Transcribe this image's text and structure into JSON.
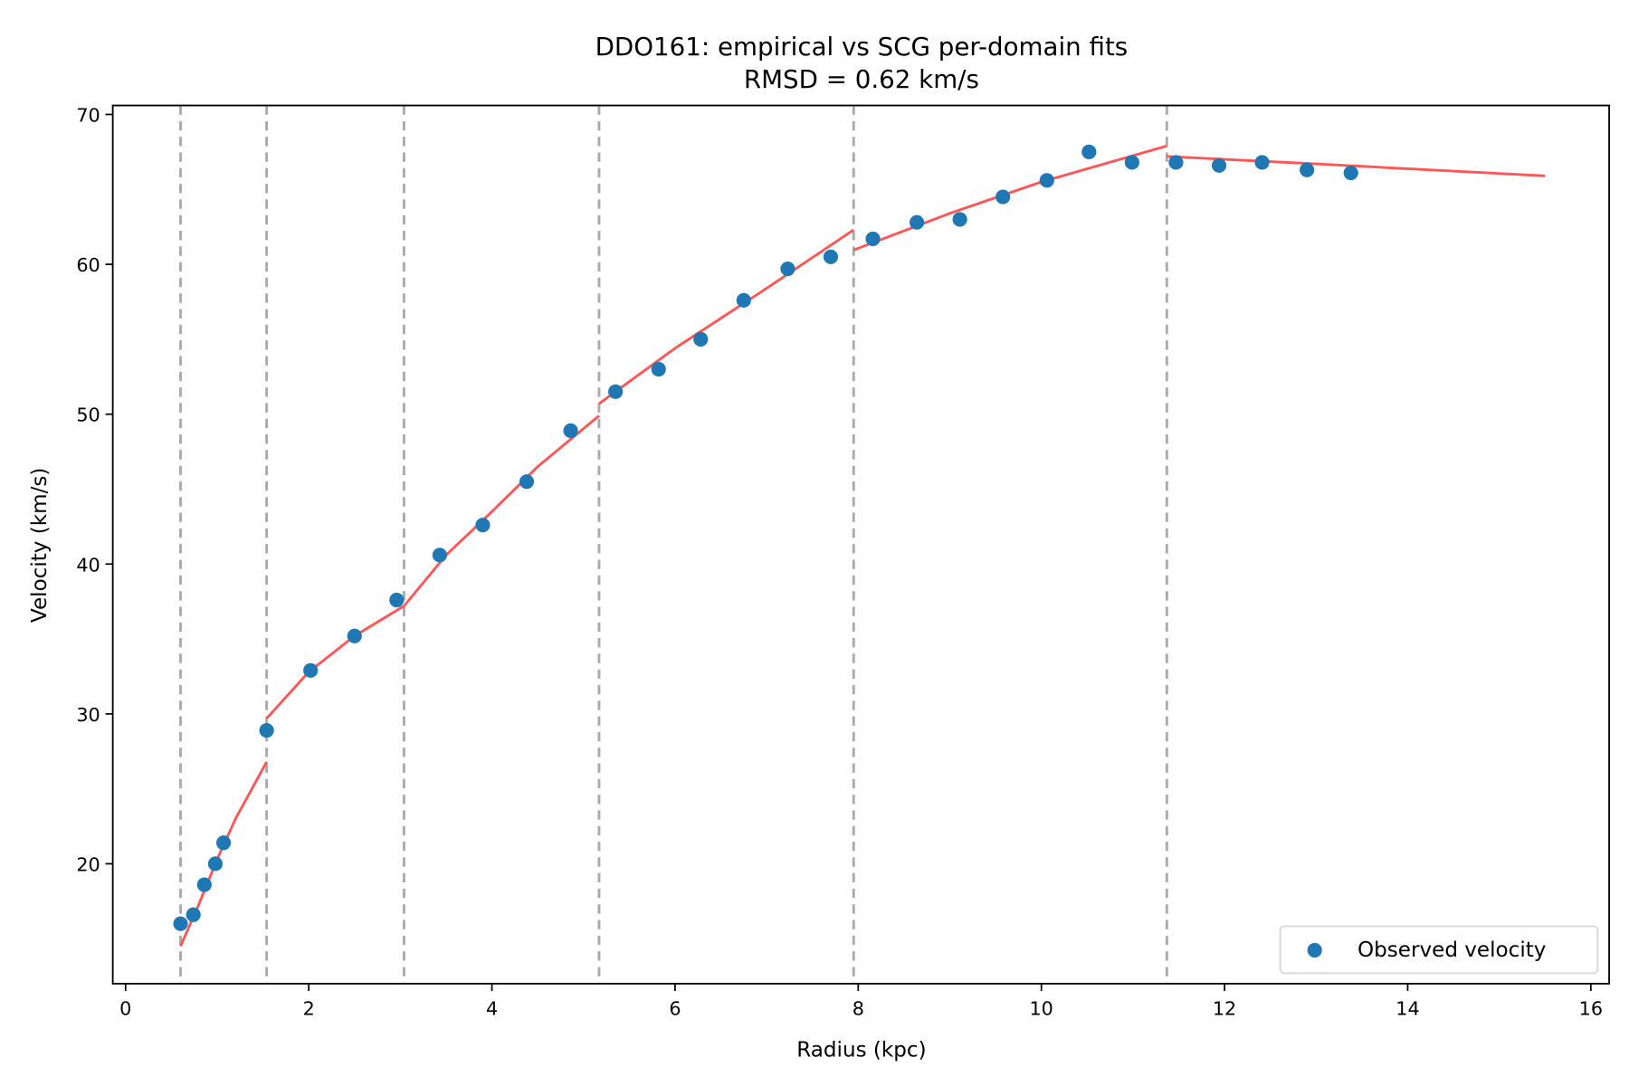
{
  "chart_data": {
    "type": "scatter",
    "title": "DDO161: empirical vs SCG per-domain fits",
    "subtitle": "RMSD = 0.62 km/s",
    "xlabel": "Radius (kpc)",
    "ylabel": "Velocity (km/s)",
    "xlim": [
      -0.14,
      16.2
    ],
    "ylim": [
      12.0,
      70.6
    ],
    "xticks": [
      0,
      2,
      4,
      6,
      8,
      10,
      12,
      14,
      16
    ],
    "yticks": [
      20,
      30,
      40,
      50,
      60,
      70
    ],
    "grid": false,
    "legend": {
      "position": "bottom-right",
      "entries": [
        "Observed velocity"
      ]
    },
    "colors": {
      "points": "#1f77b4",
      "fit": "#ff5555",
      "boundaries": "#aaaaaa"
    },
    "series": [
      {
        "name": "Observed velocity",
        "type": "scatter",
        "points": [
          [
            0.6,
            16.0
          ],
          [
            0.74,
            16.6
          ],
          [
            0.86,
            18.6
          ],
          [
            0.98,
            20.0
          ],
          [
            1.07,
            21.4
          ],
          [
            1.54,
            28.9
          ],
          [
            2.02,
            32.9
          ],
          [
            2.5,
            35.2
          ],
          [
            2.96,
            37.6
          ],
          [
            3.43,
            40.6
          ],
          [
            3.9,
            42.6
          ],
          [
            4.38,
            45.5
          ],
          [
            4.86,
            48.9
          ],
          [
            5.35,
            51.5
          ],
          [
            5.82,
            53.0
          ],
          [
            6.28,
            55.0
          ],
          [
            6.75,
            57.6
          ],
          [
            7.23,
            59.7
          ],
          [
            7.7,
            60.5
          ],
          [
            8.16,
            61.7
          ],
          [
            8.64,
            62.8
          ],
          [
            9.11,
            63.0
          ],
          [
            9.58,
            64.5
          ],
          [
            10.06,
            65.6
          ],
          [
            10.52,
            67.5
          ],
          [
            10.99,
            66.8
          ],
          [
            11.47,
            66.8
          ],
          [
            11.94,
            66.6
          ],
          [
            12.41,
            66.8
          ],
          [
            12.9,
            66.3
          ],
          [
            13.38,
            66.1
          ]
        ]
      }
    ],
    "fit_segments": [
      [
        [
          0.6,
          14.5
        ],
        [
          0.8,
          17.3
        ],
        [
          1.0,
          20.3
        ],
        [
          1.2,
          23.0
        ],
        [
          1.54,
          26.8
        ]
      ],
      [
        [
          1.54,
          29.7
        ],
        [
          2.0,
          32.8
        ],
        [
          2.5,
          35.2
        ],
        [
          3.04,
          37.2
        ]
      ],
      [
        [
          3.04,
          37.2
        ],
        [
          3.5,
          40.6
        ],
        [
          4.0,
          43.5
        ],
        [
          4.5,
          46.5
        ],
        [
          5.17,
          49.9
        ]
      ],
      [
        [
          5.17,
          50.7
        ],
        [
          6.0,
          54.4
        ],
        [
          7.0,
          58.4
        ],
        [
          7.95,
          62.3
        ]
      ],
      [
        [
          7.95,
          60.95
        ],
        [
          9.0,
          63.4
        ],
        [
          10.0,
          65.5
        ],
        [
          11.37,
          67.9
        ]
      ],
      [
        [
          11.37,
          67.2
        ],
        [
          13.0,
          66.7
        ],
        [
          15.5,
          65.9
        ]
      ]
    ],
    "domain_boundaries": [
      0.6,
      1.54,
      3.04,
      5.17,
      7.95,
      11.37
    ]
  }
}
